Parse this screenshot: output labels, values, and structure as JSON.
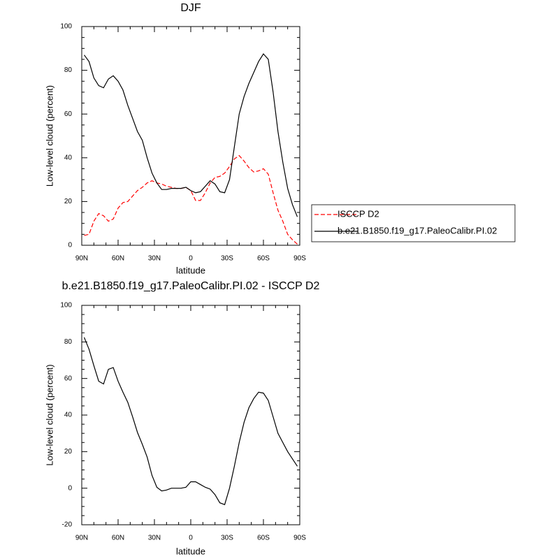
{
  "chart_data": [
    {
      "type": "line",
      "title": "DJF",
      "xlabel": "latitude",
      "ylabel": "Low-level cloud (percent)",
      "x": [
        88,
        84,
        80,
        76,
        72,
        68,
        64,
        60,
        56,
        52,
        48,
        44,
        40,
        36,
        32,
        28,
        24,
        20,
        16,
        12,
        8,
        4,
        0,
        -4,
        -8,
        -12,
        -16,
        -20,
        -24,
        -28,
        -32,
        -36,
        -40,
        -44,
        -48,
        -52,
        -56,
        -60,
        -64,
        -68,
        -72,
        -76,
        -80,
        -84,
        -88
      ],
      "series": [
        {
          "name": "ISCCP D2",
          "color": "#ff0000",
          "linestyle": "dashed",
          "values": [
            4.5,
            5,
            11,
            14.5,
            13.5,
            11,
            12,
            17,
            19.5,
            20,
            22.5,
            25,
            26.5,
            28.5,
            29.5,
            28.5,
            28,
            27,
            26.5,
            26,
            26,
            26.5,
            25,
            20.5,
            20.5,
            24,
            28.5,
            31,
            31.5,
            33,
            36,
            39.5,
            41,
            38.5,
            35.5,
            33.5,
            34,
            35,
            32.5,
            24,
            16,
            11,
            5,
            2.5,
            0.5
          ]
        },
        {
          "name": "b.e21.B1850.f19_g17.PaleoCalibr.PI.02",
          "color": "#000000",
          "linestyle": "solid",
          "values": [
            87,
            84,
            76.5,
            73,
            72,
            76,
            77.5,
            75,
            71,
            64,
            58,
            52,
            48,
            40,
            33,
            28.5,
            25.5,
            25.5,
            26,
            26,
            26,
            26.5,
            25,
            24,
            24.5,
            27,
            29.5,
            28,
            24.5,
            24,
            30,
            45,
            60,
            68,
            74,
            79,
            84,
            87.5,
            85,
            70,
            52,
            38,
            26,
            18.5,
            13
          ]
        }
      ],
      "xlim": [
        90,
        -90
      ],
      "ylim": [
        0,
        100
      ],
      "xticks": [
        {
          "value": 90,
          "label": "90N"
        },
        {
          "value": 60,
          "label": "60N"
        },
        {
          "value": 30,
          "label": "30N"
        },
        0,
        {
          "value": -30,
          "label": "30S"
        },
        {
          "value": -60,
          "label": "60S"
        },
        {
          "value": -90,
          "label": "90S"
        }
      ],
      "yticks": [
        0,
        20,
        40,
        60,
        80,
        100
      ],
      "legend": "outside-right"
    },
    {
      "type": "line",
      "title": "b.e21.B1850.f19_g17.PaleoCalibr.PI.02 - ISCCP D2",
      "xlabel": "latitude",
      "ylabel": "Low-level cloud (percent)",
      "x": [
        88,
        84,
        80,
        76,
        72,
        68,
        64,
        60,
        56,
        52,
        48,
        44,
        40,
        36,
        32,
        28,
        24,
        20,
        16,
        12,
        8,
        4,
        0,
        -4,
        -8,
        -12,
        -16,
        -20,
        -24,
        -28,
        -32,
        -36,
        -40,
        -44,
        -48,
        -52,
        -56,
        -60,
        -64,
        -68,
        -72,
        -76,
        -80,
        -84,
        -88
      ],
      "series": [
        {
          "color": "#000000",
          "linestyle": "solid",
          "values": [
            82.5,
            76,
            67,
            58.5,
            57,
            65,
            66,
            58.5,
            52.5,
            47,
            39,
            30.5,
            24,
            17,
            7,
            0.5,
            -1.5,
            -1,
            0,
            0,
            0,
            0.5,
            3.5,
            3.5,
            2,
            0.5,
            -0.5,
            -3.5,
            -8,
            -9,
            0,
            12,
            25,
            36,
            44,
            49,
            52.5,
            52,
            48,
            39,
            30,
            25,
            20,
            16,
            12
          ]
        }
      ],
      "xlim": [
        90,
        -90
      ],
      "ylim": [
        -20,
        100
      ],
      "xticks": [
        {
          "value": 90,
          "label": "90N"
        },
        {
          "value": 60,
          "label": "60N"
        },
        {
          "value": 30,
          "label": "30N"
        },
        0,
        {
          "value": -30,
          "label": "30S"
        },
        {
          "value": -60,
          "label": "60S"
        },
        {
          "value": -90,
          "label": "90S"
        }
      ],
      "yticks": [
        -20,
        0,
        20,
        40,
        60,
        80,
        100
      ]
    }
  ]
}
